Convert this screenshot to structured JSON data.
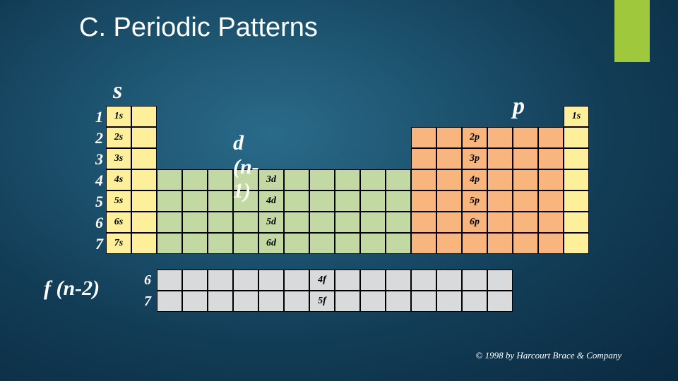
{
  "title": "C.  Periodic Patterns",
  "copyright": "© 1998 by Harcourt Brace & Company",
  "labels": {
    "s": "s",
    "p": "p",
    "d": "d (n-1)",
    "f": "f (n-2)"
  },
  "rowNumbers": [
    "1",
    "2",
    "3",
    "4",
    "5",
    "6",
    "7"
  ],
  "fRowNumbers": [
    "6",
    "7"
  ],
  "layout": {
    "cellW": 36,
    "cellH": 30,
    "sCols": 2,
    "dCols": 10,
    "pCols": 6,
    "extraCols": 1,
    "fCols": 14,
    "colors": {
      "s": "#fef09a",
      "p": "#f9b57e",
      "d": "#c3d9a4",
      "f": "#d9dadc",
      "border": "#000000",
      "text": "#000000",
      "bgText": "#ffffff"
    }
  },
  "sLabels": [
    "1s",
    "2s",
    "3s",
    "4s",
    "5s",
    "6s",
    "7s"
  ],
  "pLabels": [
    "2p",
    "3p",
    "4p",
    "5p",
    "6p"
  ],
  "dLabels": [
    "3d",
    "4d",
    "5d",
    "6d"
  ],
  "fLabels": [
    "4f",
    "5f"
  ],
  "extraLabel": "1s"
}
